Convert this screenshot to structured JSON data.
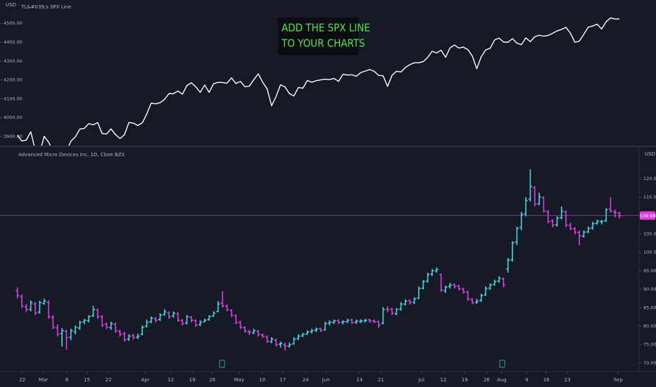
{
  "chart_data": [
    {
      "type": "line",
      "title": "TL&#039;s SPX Line",
      "unit": "USD",
      "annotation": [
        "ADD THE SPX LINE",
        "TO YOUR CHARTS"
      ],
      "color": "#ffffff",
      "values": [
        3906,
        3876,
        3881,
        3925,
        3829,
        3811,
        3901,
        3870,
        3819,
        3768,
        3841,
        3821,
        3875,
        3898,
        3939,
        3943,
        3968,
        3962,
        3974,
        3915,
        3913,
        3940,
        3910,
        3889,
        3909,
        3974,
        3971,
        3958,
        3972,
        4019,
        4077,
        4073,
        4079,
        4097,
        4128,
        4127,
        4141,
        4124,
        4170,
        4185,
        4163,
        4134,
        4173,
        4134,
        4180,
        4187,
        4186,
        4183,
        4211,
        4181,
        4192,
        4164,
        4167,
        4201,
        4232,
        4188,
        4152,
        4063,
        4112,
        4174,
        4163,
        4127,
        4115,
        4160,
        4156,
        4197,
        4188,
        4196,
        4200,
        4204,
        4202,
        4208,
        4192,
        4230,
        4226,
        4227,
        4219,
        4239,
        4247,
        4255,
        4246,
        4224,
        4222,
        4166,
        4224,
        4246,
        4242,
        4266,
        4281,
        4291,
        4291,
        4297,
        4320,
        4352,
        4343,
        4358,
        4320,
        4370,
        4385,
        4369,
        4374,
        4361,
        4327,
        4259,
        4323,
        4359,
        4368,
        4412,
        4422,
        4401,
        4400,
        4419,
        4395,
        4387,
        4423,
        4403,
        4429,
        4437,
        4432,
        4436,
        4447,
        4460,
        4468,
        4479,
        4448,
        4400,
        4406,
        4442,
        4480,
        4486,
        4496,
        4470,
        4509,
        4529,
        4523,
        4524
      ],
      "xlim": [
        -3.9,
        139.4
      ],
      "ylim": [
        3855,
        4624
      ],
      "yticks": [
        {
          "value": 3900,
          "label": "3900.00"
        },
        {
          "value": 4000,
          "label": "4000.00"
        },
        {
          "value": 4100,
          "label": "4100.00"
        },
        {
          "value": 4200,
          "label": "4200.00"
        },
        {
          "value": 4300,
          "label": "4300.00"
        },
        {
          "value": 4400,
          "label": "4400.00"
        },
        {
          "value": 4500,
          "label": "4500.00"
        }
      ]
    },
    {
      "type": "ohlc",
      "title": "Advanced Micro Devices Inc, 1D, Cboe BZX",
      "unit": "USD",
      "up_color": "#3fd8e2",
      "down_color": "#e03ce6",
      "price_line_color": "#7b3fa8",
      "ohlc": [
        [
          89.6,
          90.5,
          87.5,
          88.3
        ],
        [
          88.0,
          88.6,
          84.9,
          85.5
        ],
        [
          85.2,
          86.0,
          83.8,
          84.5
        ],
        [
          84.6,
          87.0,
          84.0,
          86.4
        ],
        [
          86.0,
          86.6,
          83.0,
          83.5
        ],
        [
          83.8,
          86.9,
          83.4,
          86.4
        ],
        [
          86.2,
          87.5,
          85.8,
          86.8
        ],
        [
          86.5,
          87.0,
          82.0,
          82.6
        ],
        [
          82.4,
          83.0,
          79.2,
          79.7
        ],
        [
          79.5,
          80.5,
          77.2,
          77.8
        ],
        [
          78.0,
          79.5,
          74.5,
          78.8
        ],
        [
          78.6,
          79.0,
          73.6,
          76.9
        ],
        [
          77.0,
          79.3,
          76.2,
          78.8
        ],
        [
          78.5,
          80.2,
          77.8,
          79.7
        ],
        [
          79.5,
          81.5,
          79.0,
          81.0
        ],
        [
          81.2,
          82.0,
          80.5,
          81.6
        ],
        [
          81.5,
          83.0,
          81.0,
          82.6
        ],
        [
          82.8,
          85.5,
          82.5,
          84.5
        ],
        [
          84.3,
          84.8,
          82.0,
          82.6
        ],
        [
          82.5,
          83.0,
          79.8,
          80.3
        ],
        [
          80.5,
          81.0,
          79.2,
          79.7
        ],
        [
          79.6,
          81.2,
          79.0,
          80.7
        ],
        [
          80.5,
          81.0,
          78.2,
          78.8
        ],
        [
          78.6,
          79.0,
          77.2,
          77.8
        ],
        [
          77.9,
          78.5,
          75.8,
          76.3
        ],
        [
          76.5,
          77.8,
          76.0,
          77.3
        ],
        [
          77.4,
          77.9,
          76.4,
          76.9
        ],
        [
          77.0,
          78.0,
          76.5,
          77.3
        ],
        [
          77.8,
          80.2,
          77.5,
          79.7
        ],
        [
          80.0,
          81.8,
          79.6,
          81.0
        ],
        [
          81.2,
          82.6,
          80.8,
          82.2
        ],
        [
          82.0,
          82.5,
          81.0,
          81.6
        ],
        [
          81.8,
          83.5,
          81.4,
          83.0
        ],
        [
          83.2,
          84.6,
          82.8,
          83.9
        ],
        [
          83.6,
          84.0,
          82.0,
          82.6
        ],
        [
          82.8,
          84.0,
          82.3,
          83.5
        ],
        [
          83.4,
          83.8,
          81.2,
          81.6
        ],
        [
          81.5,
          82.0,
          80.2,
          80.7
        ],
        [
          80.8,
          83.0,
          80.5,
          82.6
        ],
        [
          82.4,
          82.8,
          81.0,
          81.6
        ],
        [
          81.5,
          81.9,
          79.8,
          80.3
        ],
        [
          80.4,
          81.6,
          80.0,
          81.0
        ],
        [
          81.2,
          82.0,
          81.0,
          81.6
        ],
        [
          81.8,
          83.0,
          81.5,
          82.6
        ],
        [
          82.8,
          84.0,
          82.5,
          83.5
        ],
        [
          84.0,
          86.8,
          83.8,
          86.0
        ],
        [
          86.2,
          89.5,
          85.0,
          85.5
        ],
        [
          85.4,
          85.9,
          84.0,
          84.5
        ],
        [
          84.3,
          84.6,
          82.5,
          83.0
        ],
        [
          82.8,
          83.2,
          80.5,
          81.0
        ],
        [
          81.0,
          81.5,
          79.2,
          79.7
        ],
        [
          79.6,
          80.0,
          78.2,
          78.8
        ],
        [
          78.5,
          79.0,
          77.6,
          78.4
        ],
        [
          78.2,
          79.3,
          77.8,
          78.8
        ],
        [
          78.6,
          79.0,
          77.2,
          77.8
        ],
        [
          77.6,
          78.0,
          76.8,
          77.3
        ],
        [
          77.0,
          77.5,
          75.5,
          75.9
        ],
        [
          75.8,
          77.0,
          75.4,
          76.5
        ],
        [
          76.2,
          76.6,
          74.5,
          75.0
        ],
        [
          75.1,
          75.8,
          74.2,
          75.3
        ],
        [
          75.0,
          75.5,
          73.4,
          74.6
        ],
        [
          74.6,
          75.6,
          74.2,
          75.0
        ],
        [
          75.2,
          77.0,
          75.0,
          76.5
        ],
        [
          76.6,
          77.8,
          76.2,
          77.3
        ],
        [
          77.4,
          78.2,
          77.0,
          77.8
        ],
        [
          77.9,
          78.9,
          77.6,
          78.4
        ],
        [
          78.5,
          79.3,
          78.0,
          78.8
        ],
        [
          78.9,
          79.6,
          78.4,
          79.2
        ],
        [
          79.3,
          79.6,
          78.4,
          78.8
        ],
        [
          79.0,
          81.2,
          78.8,
          80.7
        ],
        [
          80.8,
          81.6,
          80.2,
          81.0
        ],
        [
          81.0,
          81.8,
          80.6,
          81.4
        ],
        [
          81.5,
          81.9,
          80.6,
          81.0
        ],
        [
          81.0,
          81.6,
          80.5,
          81.2
        ],
        [
          81.2,
          82.0,
          80.8,
          81.6
        ],
        [
          81.7,
          82.0,
          80.6,
          81.0
        ],
        [
          81.0,
          81.8,
          80.6,
          81.4
        ],
        [
          81.3,
          81.9,
          80.8,
          81.4
        ],
        [
          81.4,
          82.0,
          81.0,
          81.6
        ],
        [
          81.7,
          82.0,
          80.9,
          81.4
        ],
        [
          81.4,
          81.8,
          80.8,
          81.2
        ],
        [
          81.2,
          81.5,
          79.5,
          80.3
        ],
        [
          80.8,
          85.2,
          80.5,
          84.5
        ],
        [
          84.6,
          85.4,
          83.8,
          84.5
        ],
        [
          84.6,
          85.0,
          83.0,
          83.5
        ],
        [
          83.4,
          84.9,
          83.0,
          84.5
        ],
        [
          84.6,
          86.5,
          84.2,
          86.0
        ],
        [
          86.0,
          87.3,
          85.6,
          86.8
        ],
        [
          86.9,
          87.2,
          85.9,
          86.4
        ],
        [
          86.5,
          87.8,
          86.0,
          87.4
        ],
        [
          87.6,
          90.8,
          87.4,
          90.2
        ],
        [
          90.3,
          92.5,
          90.0,
          92.1
        ],
        [
          92.2,
          94.5,
          91.8,
          94.0
        ],
        [
          94.1,
          95.5,
          93.6,
          95.0
        ],
        [
          95.0,
          95.9,
          94.5,
          95.4
        ],
        [
          94.0,
          94.2,
          89.3,
          89.8
        ],
        [
          89.6,
          91.0,
          89.0,
          90.6
        ],
        [
          90.8,
          91.8,
          90.2,
          91.2
        ],
        [
          91.2,
          91.6,
          90.2,
          90.8
        ],
        [
          90.9,
          91.2,
          89.7,
          90.2
        ],
        [
          90.0,
          90.4,
          88.8,
          89.3
        ],
        [
          89.2,
          89.6,
          86.9,
          87.4
        ],
        [
          87.2,
          87.6,
          85.9,
          86.4
        ],
        [
          86.5,
          87.4,
          86.0,
          86.8
        ],
        [
          87.0,
          88.8,
          86.6,
          88.3
        ],
        [
          88.5,
          90.8,
          88.2,
          90.2
        ],
        [
          90.3,
          91.6,
          89.8,
          91.2
        ],
        [
          91.3,
          92.6,
          91.0,
          92.1
        ],
        [
          92.2,
          93.5,
          91.8,
          93.0
        ],
        [
          92.8,
          93.2,
          90.5,
          91.2
        ],
        [
          95.5,
          98.5,
          94.5,
          97.9
        ],
        [
          98.0,
          103.0,
          97.5,
          102.6
        ],
        [
          102.8,
          107.0,
          102.0,
          106.5
        ],
        [
          106.8,
          111.0,
          106.0,
          110.3
        ],
        [
          110.5,
          115.0,
          109.8,
          114.1
        ],
        [
          114.5,
          122.5,
          113.8,
          117.9
        ],
        [
          117.5,
          118.0,
          112.5,
          113.1
        ],
        [
          113.2,
          116.2,
          112.8,
          115.0
        ],
        [
          114.8,
          115.2,
          110.8,
          111.2
        ],
        [
          111.0,
          111.5,
          107.9,
          108.4
        ],
        [
          108.5,
          109.0,
          106.8,
          107.4
        ],
        [
          107.5,
          109.8,
          107.0,
          109.3
        ],
        [
          109.4,
          112.5,
          109.0,
          111.2
        ],
        [
          111.0,
          111.4,
          106.9,
          107.4
        ],
        [
          107.3,
          108.0,
          106.0,
          106.5
        ],
        [
          106.4,
          106.9,
          104.9,
          105.5
        ],
        [
          105.4,
          106.0,
          101.9,
          104.5
        ],
        [
          104.4,
          106.0,
          104.0,
          105.5
        ],
        [
          105.6,
          107.0,
          105.2,
          106.5
        ],
        [
          106.6,
          108.3,
          106.2,
          107.8
        ],
        [
          107.9,
          108.9,
          107.5,
          108.4
        ],
        [
          108.4,
          108.8,
          107.6,
          108.4
        ],
        [
          108.6,
          112.0,
          108.3,
          111.6
        ],
        [
          111.8,
          114.9,
          110.8,
          111.2
        ],
        [
          111.0,
          111.6,
          109.5,
          110.8
        ],
        [
          110.6,
          111.0,
          109.2,
          109.99
        ]
      ],
      "xlim": [
        -3.9,
        139.4
      ],
      "ylim": [
        67.7,
        128
      ],
      "yticks": [
        {
          "value": 70,
          "label": "70.00"
        },
        {
          "value": 75,
          "label": "75.00"
        },
        {
          "value": 80,
          "label": "80.00"
        },
        {
          "value": 85,
          "label": "85.00"
        },
        {
          "value": 90,
          "label": "90.00"
        },
        {
          "value": 95,
          "label": "95.00"
        },
        {
          "value": 100,
          "label": "100.00"
        },
        {
          "value": 105,
          "label": "105.00"
        },
        {
          "value": 110,
          "label": "110.00"
        },
        {
          "value": 115,
          "label": "115.00"
        },
        {
          "value": 120,
          "label": "120.00"
        }
      ],
      "xticks": [
        {
          "value": 1.1,
          "label": "22"
        },
        {
          "value": 5.8,
          "label": "Mar"
        },
        {
          "value": 11.1,
          "label": "8"
        },
        {
          "value": 15.6,
          "label": "15"
        },
        {
          "value": 20.4,
          "label": "22"
        },
        {
          "value": 28.7,
          "label": "Apr"
        },
        {
          "value": 34.4,
          "label": "12"
        },
        {
          "value": 39.2,
          "label": "19"
        },
        {
          "value": 43.7,
          "label": "26"
        },
        {
          "value": 49.7,
          "label": "May"
        },
        {
          "value": 54.9,
          "label": "10"
        },
        {
          "value": 59.5,
          "label": "17"
        },
        {
          "value": 64.6,
          "label": "24"
        },
        {
          "value": 69.2,
          "label": "Jun"
        },
        {
          "value": 76.7,
          "label": "14"
        },
        {
          "value": 81.5,
          "label": "21"
        },
        {
          "value": 90.6,
          "label": "Jul"
        },
        {
          "value": 95.5,
          "label": "12"
        },
        {
          "value": 100.3,
          "label": "19"
        },
        {
          "value": 105.2,
          "label": "26"
        },
        {
          "value": 108.6,
          "label": "Aug"
        },
        {
          "value": 114.2,
          "label": "9"
        },
        {
          "value": 118.6,
          "label": "16"
        },
        {
          "value": 123.3,
          "label": "23"
        },
        {
          "value": 134.7,
          "label": "Sep"
        }
      ]
    }
  ]
}
